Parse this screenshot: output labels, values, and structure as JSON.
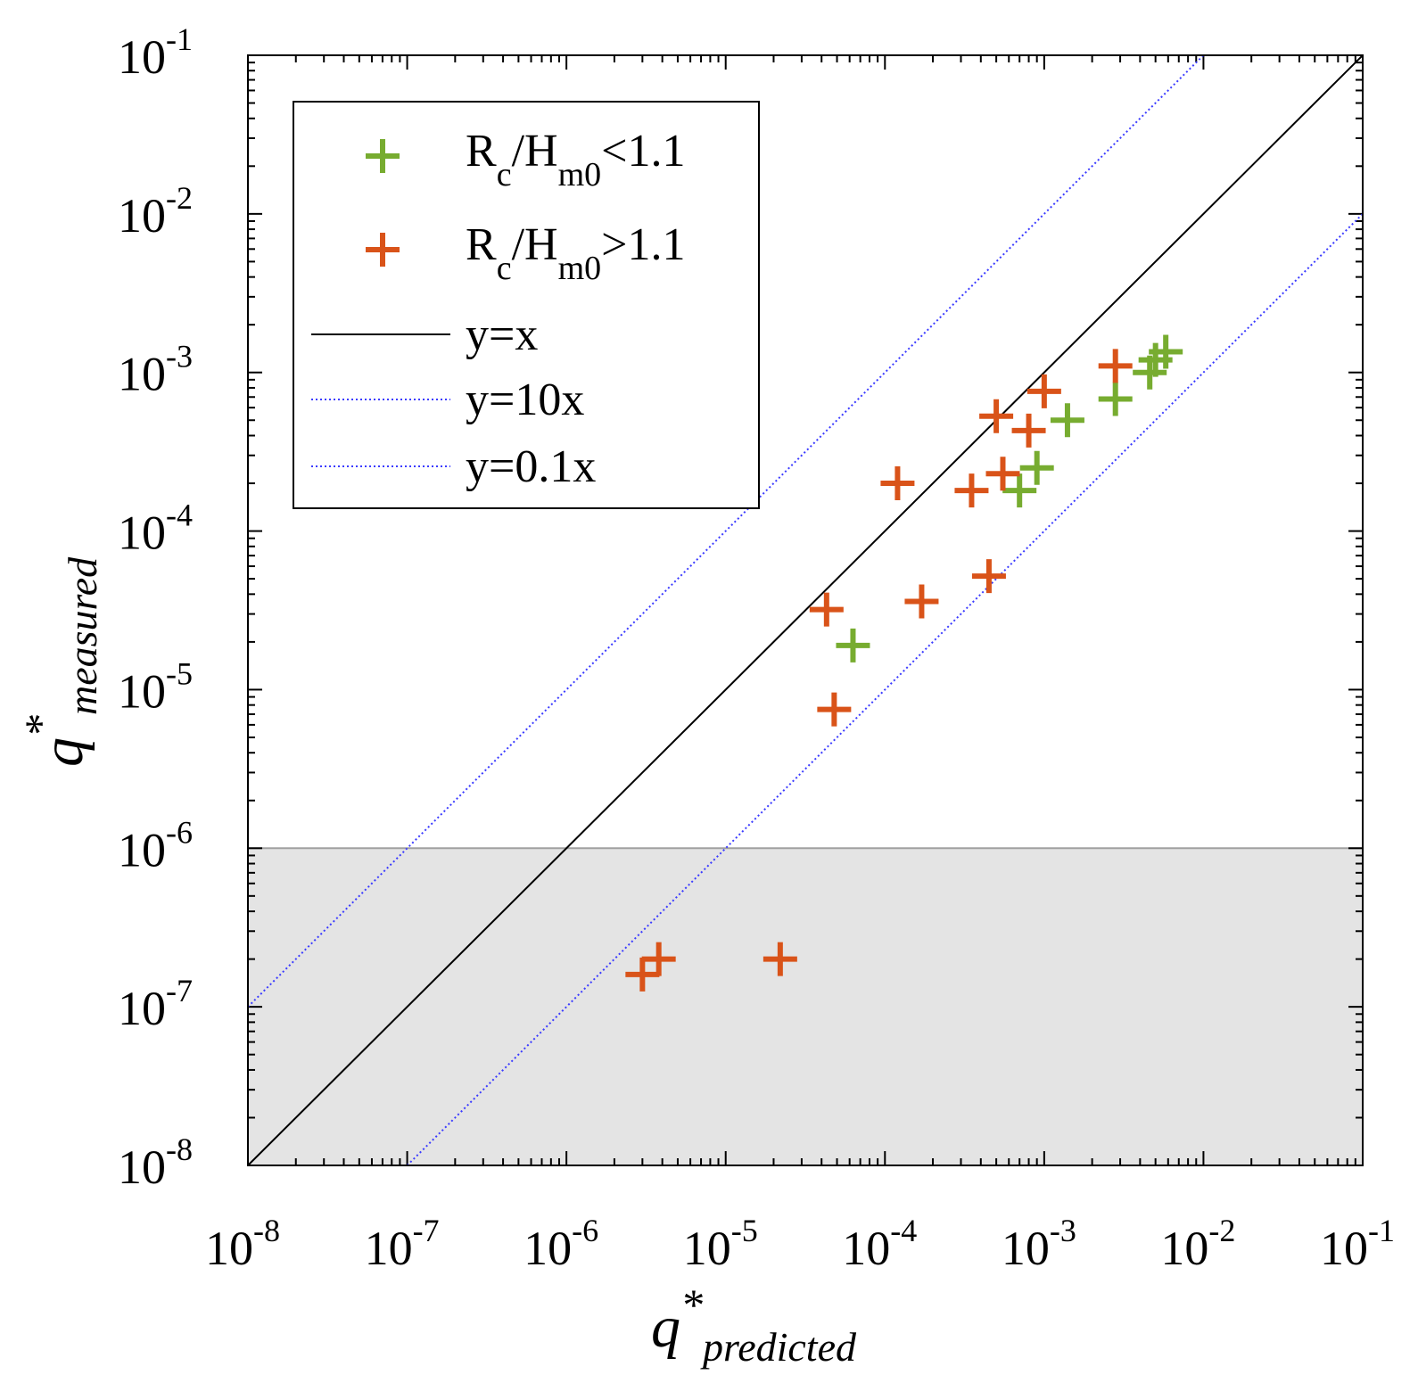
{
  "chart_data": {
    "type": "scatter",
    "xscale": "log",
    "yscale": "log",
    "xlim": [
      1e-08,
      0.1
    ],
    "ylim": [
      1e-08,
      0.1
    ],
    "xlabel_base": "q",
    "xlabel_sup": "*",
    "xlabel_sub": "predicted",
    "ylabel_base": "q",
    "ylabel_sup": "*",
    "ylabel_sub": "measured",
    "shaded_region": {
      "y_from": 1e-08,
      "y_to": 1e-06,
      "color": "#e4e4e4"
    },
    "x_ticks": [
      {
        "value": 1e-08,
        "base": "10",
        "exp": "-8"
      },
      {
        "value": 1e-07,
        "base": "10",
        "exp": "-7"
      },
      {
        "value": 1e-06,
        "base": "10",
        "exp": "-6"
      },
      {
        "value": 1e-05,
        "base": "10",
        "exp": "-5"
      },
      {
        "value": 0.0001,
        "base": "10",
        "exp": "-4"
      },
      {
        "value": 0.001,
        "base": "10",
        "exp": "-3"
      },
      {
        "value": 0.01,
        "base": "10",
        "exp": "-2"
      },
      {
        "value": 0.1,
        "base": "10",
        "exp": "-1"
      }
    ],
    "y_ticks": [
      {
        "value": 1e-08,
        "base": "10",
        "exp": "-8"
      },
      {
        "value": 1e-07,
        "base": "10",
        "exp": "-7"
      },
      {
        "value": 1e-06,
        "base": "10",
        "exp": "-6"
      },
      {
        "value": 1e-05,
        "base": "10",
        "exp": "-5"
      },
      {
        "value": 0.0001,
        "base": "10",
        "exp": "-4"
      },
      {
        "value": 0.001,
        "base": "10",
        "exp": "-3"
      },
      {
        "value": 0.01,
        "base": "10",
        "exp": "-2"
      },
      {
        "value": 0.1,
        "base": "10",
        "exp": "-1"
      }
    ],
    "lines": [
      {
        "name": "y=x",
        "factor": 1,
        "color": "#000000",
        "style": "solid"
      },
      {
        "name": "y=10x",
        "factor": 10,
        "color": "#3b3bff",
        "style": "dotted"
      },
      {
        "name": "y=0.1x",
        "factor": 0.1,
        "color": "#3b3bff",
        "style": "dotted"
      }
    ],
    "series": [
      {
        "name_base": "R",
        "name_sub1": "c",
        "name_mid": "/H",
        "name_sub2": "m0",
        "name_tail": "<1.1",
        "color": "#77ac30",
        "points": [
          [
            6.3e-05,
            1.9e-05
          ],
          [
            0.0007,
            0.00018
          ],
          [
            0.0009,
            0.00025
          ],
          [
            0.0014,
            0.0005
          ],
          [
            0.0028,
            0.00068
          ],
          [
            0.0046,
            0.001
          ],
          [
            0.005,
            0.0012
          ],
          [
            0.0058,
            0.00135
          ]
        ]
      },
      {
        "name_base": "R",
        "name_sub1": "c",
        "name_mid": "/H",
        "name_sub2": "m0",
        "name_tail": ">1.1",
        "color": "#d95319",
        "points": [
          [
            3e-06,
            1.6e-07
          ],
          [
            3.8e-06,
            2e-07
          ],
          [
            2.2e-05,
            2e-07
          ],
          [
            4.8e-05,
            7.5e-06
          ],
          [
            4.3e-05,
            3.2e-05
          ],
          [
            0.00012,
            0.0002
          ],
          [
            0.00017,
            3.6e-05
          ],
          [
            0.00035,
            0.00018
          ],
          [
            0.00045,
            5.2e-05
          ],
          [
            0.0005,
            0.00053
          ],
          [
            0.00055,
            0.00023
          ],
          [
            0.0008,
            0.00043
          ],
          [
            0.001,
            0.00076
          ],
          [
            0.0028,
            0.0011
          ]
        ]
      }
    ]
  }
}
